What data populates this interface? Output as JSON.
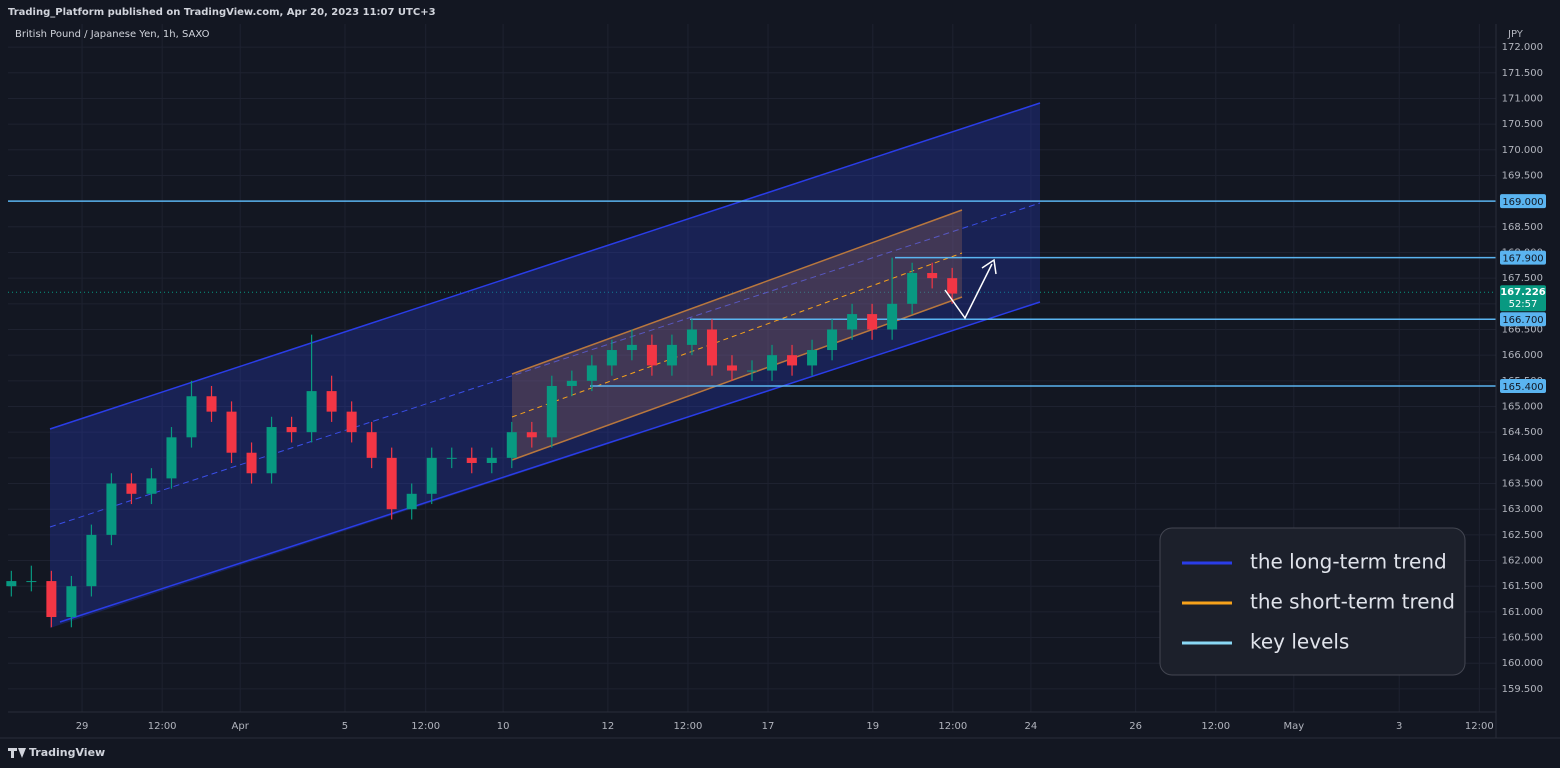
{
  "chart_data": {
    "type": "candlestick",
    "title": "Trading_Platform published on TradingView.com, Apr 20, 2023 11:07 UTC+3",
    "subtitle": "British Pound / Japanese Yen, 1h, SAXO",
    "currency": "JPY",
    "brand": "TradingView",
    "up_color": "#089981",
    "down_color": "#f23645",
    "x": [
      0.5,
      3.5,
      6.5,
      9.5,
      12.5,
      15.5,
      18.5,
      21.5,
      24.5,
      27.5,
      30.5,
      33.5,
      36.5,
      39.5,
      42.5,
      45.5,
      48.5,
      51.5,
      54.5,
      57.5,
      60.5,
      63.5,
      66.5,
      69.5,
      72.5,
      75.5,
      78.5,
      81.5,
      84.5,
      87.5,
      90.5,
      93.5,
      96.5,
      99.5,
      102.5,
      105.5,
      108.5,
      111.5,
      114.5,
      117.5,
      120.5,
      123.5,
      126.5,
      129.5,
      132.5,
      135.5,
      138.5,
      141.5
    ],
    "open": [
      161.5,
      161.6,
      161.6,
      160.9,
      161.5,
      162.5,
      163.5,
      163.3,
      163.6,
      164.4,
      165.2,
      164.9,
      164.1,
      163.7,
      164.6,
      164.5,
      165.3,
      164.9,
      164.5,
      164.0,
      163.0,
      163.3,
      164.0,
      164.0,
      163.9,
      164.0,
      164.5,
      164.4,
      165.4,
      165.5,
      165.8,
      166.1,
      166.2,
      165.8,
      166.2,
      166.5,
      165.8,
      165.7,
      165.7,
      166.0,
      165.8,
      166.1,
      166.5,
      166.8,
      166.5,
      167.0,
      167.6,
      167.5
    ],
    "high": [
      161.8,
      161.9,
      161.8,
      161.7,
      162.7,
      163.7,
      163.7,
      163.8,
      164.6,
      165.5,
      165.4,
      165.1,
      164.3,
      164.8,
      164.8,
      166.4,
      165.6,
      165.1,
      164.7,
      164.2,
      163.5,
      164.2,
      164.2,
      164.2,
      164.2,
      164.7,
      164.7,
      165.6,
      165.7,
      166.0,
      166.3,
      166.5,
      166.4,
      166.4,
      166.7,
      166.7,
      166.0,
      165.9,
      166.2,
      166.2,
      166.3,
      166.7,
      167.0,
      167.0,
      167.9,
      167.8,
      167.8,
      167.7
    ],
    "low": [
      161.3,
      161.4,
      160.7,
      160.7,
      161.3,
      162.3,
      163.1,
      163.1,
      163.4,
      164.2,
      164.7,
      163.9,
      163.5,
      163.5,
      164.3,
      164.3,
      164.7,
      164.3,
      163.8,
      162.8,
      162.8,
      163.1,
      163.8,
      163.7,
      163.7,
      163.8,
      164.2,
      164.2,
      165.2,
      165.3,
      165.6,
      165.9,
      165.6,
      165.6,
      166.0,
      165.6,
      165.5,
      165.5,
      165.5,
      165.6,
      165.6,
      165.9,
      166.3,
      166.3,
      166.3,
      166.8,
      167.3,
      167.0
    ],
    "close": [
      161.6,
      161.6,
      160.9,
      161.5,
      162.5,
      163.5,
      163.3,
      163.6,
      164.4,
      165.2,
      164.9,
      164.1,
      163.7,
      164.6,
      164.5,
      165.3,
      164.9,
      164.5,
      164.0,
      163.0,
      163.3,
      164.0,
      164.0,
      163.9,
      164.0,
      164.5,
      164.4,
      165.4,
      165.5,
      165.8,
      166.1,
      166.2,
      165.8,
      166.2,
      166.5,
      165.8,
      165.7,
      165.7,
      166.0,
      165.8,
      166.1,
      166.5,
      166.8,
      166.5,
      167.0,
      167.6,
      167.5,
      167.2
    ],
    "xlim": [
      0,
      223
    ],
    "xticks": [
      {
        "value": 11.1,
        "label": "29"
      },
      {
        "value": 23.1,
        "label": "12:00"
      },
      {
        "value": 34.8,
        "label": "Apr"
      },
      {
        "value": 50.5,
        "label": "5"
      },
      {
        "value": 62.6,
        "label": "12:00"
      },
      {
        "value": 74.2,
        "label": "10"
      },
      {
        "value": 89.9,
        "label": "12"
      },
      {
        "value": 101.9,
        "label": "12:00"
      },
      {
        "value": 113.9,
        "label": "17"
      },
      {
        "value": 129.6,
        "label": "19"
      },
      {
        "value": 141.6,
        "label": "12:00"
      },
      {
        "value": 153.3,
        "label": "24"
      },
      {
        "value": 169.0,
        "label": "26"
      },
      {
        "value": 181.0,
        "label": "12:00"
      },
      {
        "value": 192.7,
        "label": "May"
      },
      {
        "value": 208.5,
        "label": "3"
      },
      {
        "value": 220.5,
        "label": "12:00"
      }
    ],
    "ylim": [
      159.05,
      172.45
    ],
    "yticks": [
      {
        "value": 159.5,
        "label": "159.500"
      },
      {
        "value": 160,
        "label": "160.000"
      },
      {
        "value": 160.5,
        "label": "160.500"
      },
      {
        "value": 161,
        "label": "161.000"
      },
      {
        "value": 161.5,
        "label": "161.500"
      },
      {
        "value": 162,
        "label": "162.000"
      },
      {
        "value": 162.5,
        "label": "162.500"
      },
      {
        "value": 163,
        "label": "163.000"
      },
      {
        "value": 163.5,
        "label": "163.500"
      },
      {
        "value": 164,
        "label": "164.000"
      },
      {
        "value": 164.5,
        "label": "164.500"
      },
      {
        "value": 165,
        "label": "165.000"
      },
      {
        "value": 165.5,
        "label": "165.500"
      },
      {
        "value": 166,
        "label": "166.000"
      },
      {
        "value": 166.5,
        "label": "166.500"
      },
      {
        "value": 167,
        "label": "167.000"
      },
      {
        "value": 167.5,
        "label": "167.500"
      },
      {
        "value": 168,
        "label": "168.000"
      },
      {
        "value": 168.5,
        "label": "168.500"
      },
      {
        "value": 169,
        "label": "169.000"
      },
      {
        "value": 169.5,
        "label": "169.500"
      },
      {
        "value": 170,
        "label": "170.000"
      },
      {
        "value": 170.5,
        "label": "170.500"
      },
      {
        "value": 171,
        "label": "171.000"
      },
      {
        "value": 171.5,
        "label": "171.500"
      },
      {
        "value": 172,
        "label": "172.000"
      }
    ],
    "grid": true,
    "level_color": "#5ab4f0",
    "levels": [
      {
        "value": 169,
        "label": "169.000"
      },
      {
        "value": 167.9,
        "label": "167.900"
      },
      {
        "value": 166.7,
        "label": "166.700"
      },
      {
        "value": 165.4,
        "label": "165.400"
      }
    ],
    "last_price": {
      "value": 167.226,
      "label": "167.226",
      "countdown": "52:57"
    },
    "legend": [
      {
        "name": "the long-term trend",
        "color": "#2a3de8"
      },
      {
        "name": "the short-term trend",
        "color": "#f7a21b"
      },
      {
        "name": "key levels",
        "color": "#8ad8f5"
      }
    ]
  }
}
